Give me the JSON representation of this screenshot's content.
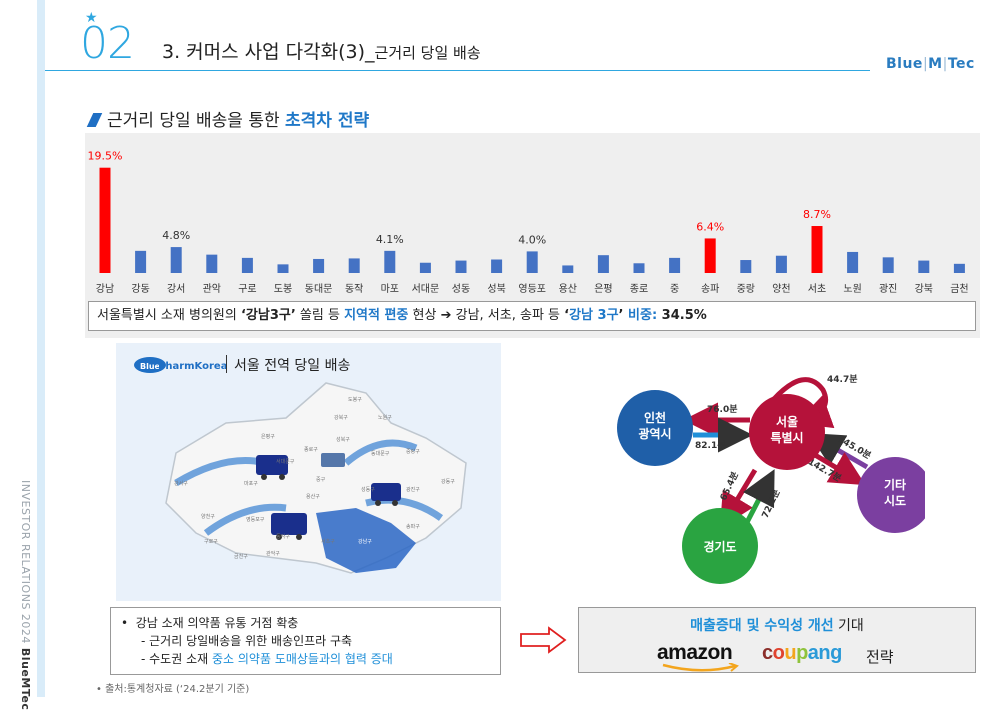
{
  "header": {
    "section_number": "02",
    "title": "3. 커머스 사업 다각화(3)_",
    "title_sub": "근거리 당일 배송",
    "brand": [
      "Blue",
      "M",
      "Tec"
    ]
  },
  "sidebar": {
    "vertical_text": "INVESTOR RELATIONS 2024",
    "vertical_brand": "BlueMTec"
  },
  "subheading": {
    "text": "근거리 당일 배송을 통한 ",
    "highlight": "초격차 전략"
  },
  "chart_data": {
    "type": "bar",
    "categories": [
      "강남",
      "강동",
      "강서",
      "관악",
      "구로",
      "도봉",
      "동대문",
      "동작",
      "마포",
      "서대문",
      "성동",
      "성북",
      "영등포",
      "용산",
      "은평",
      "종로",
      "중",
      "송파",
      "중랑",
      "양천",
      "서초",
      "노원",
      "광진",
      "강북",
      "금천"
    ],
    "values": [
      19.5,
      4.1,
      4.8,
      3.4,
      2.8,
      1.6,
      2.6,
      2.7,
      4.1,
      1.9,
      2.3,
      2.5,
      4.0,
      1.4,
      3.3,
      1.8,
      2.8,
      6.4,
      2.4,
      3.2,
      8.7,
      3.9,
      2.9,
      2.3,
      1.7
    ],
    "highlighted": [
      "강남",
      "송파",
      "서초"
    ],
    "data_labels": [
      {
        "category": "강남",
        "text": "19.5%"
      },
      {
        "category": "강서",
        "text": "4.8%"
      },
      {
        "category": "마포",
        "text": "4.1%"
      },
      {
        "category": "영등포",
        "text": "4.0%"
      },
      {
        "category": "송파",
        "text": "6.4%"
      },
      {
        "category": "서초",
        "text": "8.7%"
      }
    ],
    "ylim": [
      0,
      20
    ],
    "colors": {
      "normal": "#4472c4",
      "highlight": "#ff0000",
      "highlight_label": "#ff0000",
      "label": "#333333"
    }
  },
  "summary": {
    "p1": "서울특별시 소재 병의원의 ",
    "b1": "‘강남3구’",
    "p2": " 쏠림 등 ",
    "blue1": "지역적 편중",
    "p3": " 현상 ",
    "arrow": "➔",
    "p4": " 강남, 서초, 송파 등 ",
    "b2a": "‘",
    "blue2": "강남 3구",
    "b2b": "’",
    "blue3": " 비중:",
    "value": "  34.5%"
  },
  "map": {
    "logo_text": "PharmKorea",
    "logo_prefix": "Blue",
    "title": "서울 전역 당일 배송",
    "district_labels": [
      "도봉구",
      "노원구",
      "강북구",
      "은평구",
      "성북구",
      "종로구",
      "서대문구",
      "중랑구",
      "동대문구",
      "마포구",
      "중구",
      "성동구",
      "광진구",
      "강서구",
      "용산구",
      "강동구",
      "양천구",
      "영등포구",
      "동작구",
      "구로구",
      "관악구",
      "서초구",
      "금천구",
      "송파구",
      "강남구"
    ]
  },
  "flow": {
    "nodes": {
      "seoul": "서울\n특별시",
      "incheon": "인천\n광역시",
      "gyeonggi": "경기도",
      "other": "기타\n시도"
    },
    "labels": {
      "self": "44.7분",
      "seoul_to_incheon": "76.0분",
      "incheon_to_seoul": "82.1분",
      "seoul_to_gyeonggi": "65.4분",
      "gyeonggi_to_seoul": "72.1분",
      "other_to_seoul": "145.0분",
      "seoul_to_other": "142.7분"
    },
    "colors": {
      "seoul": "#b5123a",
      "incheon": "#1f5fa8",
      "gyeonggi": "#2aa441",
      "other": "#7b3fa0"
    }
  },
  "bullets": {
    "main": "강남 소재 의약품 유통 거점 확충",
    "sub1": "- 근거리 당일배송을 위한 배송인프라 구축",
    "sub2_prefix": "- 수도권 소재 ",
    "sub2_blue": "중소 의약품 도매상들과의 협력 증대"
  },
  "source": "• 출처:통계청자료 (‘24.2분기 기준)",
  "result": {
    "blue": "매출증대 및 수익성 개선",
    "rest": " 기대",
    "amazon": "amazon",
    "coupang": [
      "c",
      "o",
      "u",
      "p",
      "a",
      "n",
      "g"
    ],
    "strategy": "전략"
  }
}
